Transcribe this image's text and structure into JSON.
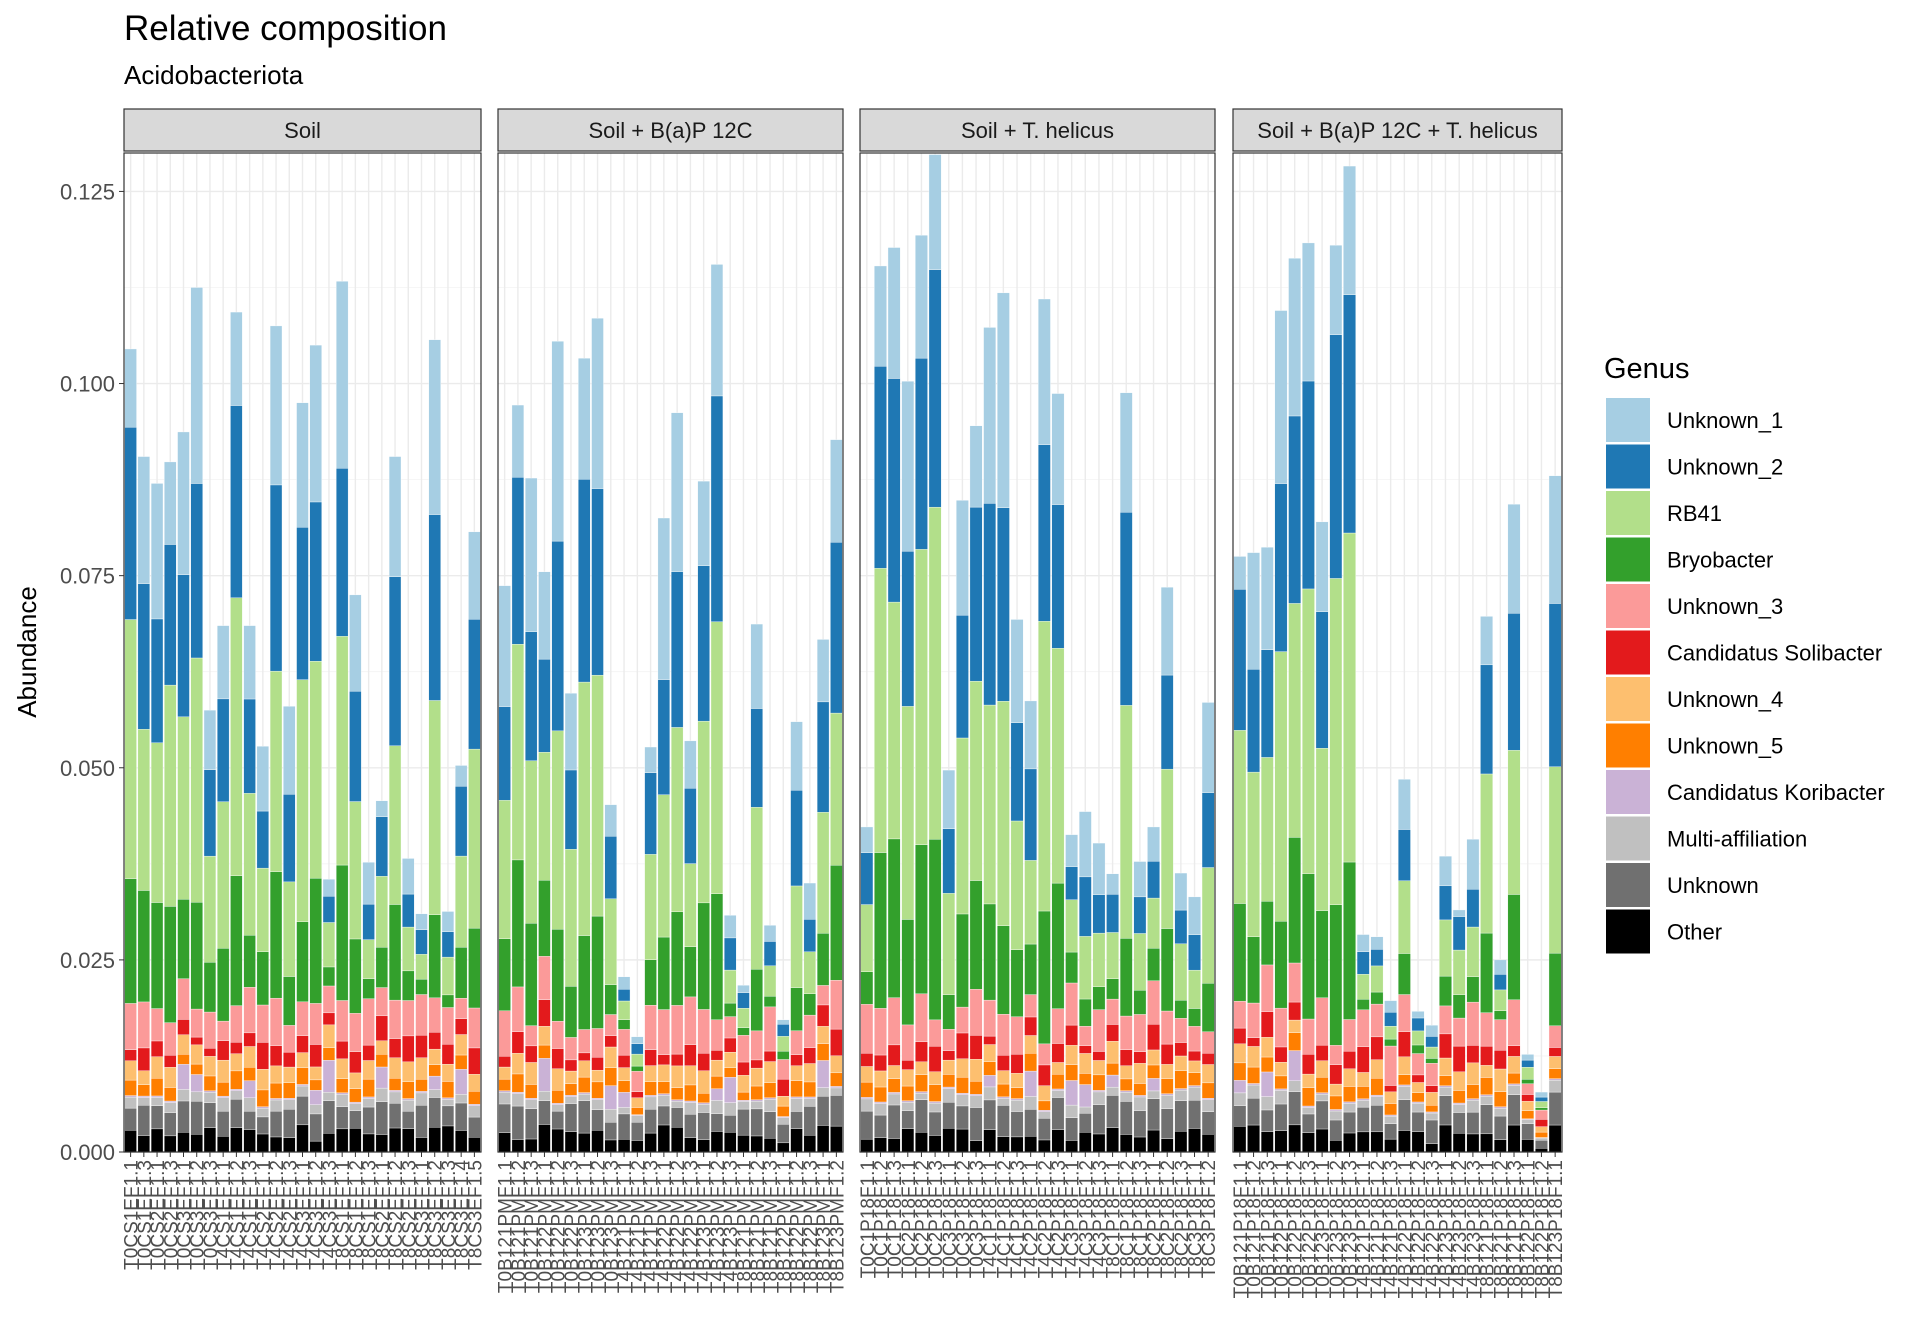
{
  "chart_data": {
    "type": "bar",
    "stacked": true,
    "title": "Relative composition",
    "subtitle": "Acidobacteriota",
    "ylabel": "Abundance",
    "xlabel": "",
    "ylim": [
      0,
      0.13
    ],
    "yticks": [
      "0.000",
      "0.025",
      "0.050",
      "0.075",
      "0.100",
      "0.125"
    ],
    "ytick_values": [
      0,
      0.025,
      0.05,
      0.075,
      0.1,
      0.125
    ],
    "grid": true,
    "legend": {
      "title": "Genus",
      "position": "right",
      "items": [
        "Unknown_1",
        "Unknown_2",
        "RB41",
        "Bryobacter",
        "Unknown_3",
        "Candidatus Solibacter",
        "Unknown_4",
        "Unknown_5",
        "Candidatus Koribacter",
        "Multi-affiliation",
        "Unknown",
        "Other"
      ]
    },
    "colors": {
      "Unknown_1": "#A6CEE3",
      "Unknown_2": "#1F78B4",
      "RB41": "#B2DF8A",
      "Bryobacter": "#33A02C",
      "Unknown_3": "#FB9A99",
      "Candidatus Solibacter": "#E31A1C",
      "Unknown_4": "#FDBF6F",
      "Unknown_5": "#FF7F00",
      "Candidatus Koribacter": "#CAB2D6",
      "Multi-affiliation": "#C0C0C0",
      "Unknown": "#707070",
      "Other": "#000000"
    },
    "panels": [
      {
        "name": "Soil",
        "bars": [
          {
            "label": "T0CS1EF1.1",
            "total": 0.1045
          },
          {
            "label": "T0CS1EF1.3",
            "total": 0.0905
          },
          {
            "label": "T0CS2EF1.1",
            "total": 0.087
          },
          {
            "label": "T0CS2EF1.3",
            "total": 0.0898
          },
          {
            "label": "T0CS3EF1.1",
            "total": 0.0937
          },
          {
            "label": "T0CS3EF1.2",
            "total": 0.1125
          },
          {
            "label": "T0CS3EF1.3",
            "total": 0.0575
          },
          {
            "label": "T4CS1EF1.1",
            "total": 0.0685
          },
          {
            "label": "T4CS1EF1.2",
            "total": 0.1093
          },
          {
            "label": "T4CS1EF1.3",
            "total": 0.0685
          },
          {
            "label": "T4CS2EF1.1",
            "total": 0.0528
          },
          {
            "label": "T4CS2EF1.2",
            "total": 0.1075
          },
          {
            "label": "T4CS2EF1.3",
            "total": 0.058
          },
          {
            "label": "T4CS3EF1.1",
            "total": 0.0975
          },
          {
            "label": "T4CS3EF1.2",
            "total": 0.105
          },
          {
            "label": "T4CS3EF1.3",
            "total": 0.0355
          },
          {
            "label": "T8CS1EF1.1",
            "total": 0.1133
          },
          {
            "label": "T8CS1EF1.2",
            "total": 0.0725
          },
          {
            "label": "T8CS1EF1.3",
            "total": 0.0377
          },
          {
            "label": "T8CS2EF1.1",
            "total": 0.0457
          },
          {
            "label": "T8CS2EF1.2",
            "total": 0.0905
          },
          {
            "label": "T8CS2EF1.3",
            "total": 0.0382
          },
          {
            "label": "T8CS3EF1.1",
            "total": 0.031
          },
          {
            "label": "T8CS3EF1.2",
            "total": 0.1057
          },
          {
            "label": "T8CS3EF1.3",
            "total": 0.0313
          },
          {
            "label": "T8CS3EF1.4",
            "total": 0.0503
          },
          {
            "label": "T8CS3EF1.5",
            "total": 0.0807
          }
        ]
      },
      {
        "name": "Soil + B(a)P 12C",
        "bars": [
          {
            "label": "T0B121PMF1.1",
            "total": 0.0737
          },
          {
            "label": "T0B121PMF1.2",
            "total": 0.0972
          },
          {
            "label": "T0B121PMF1.3",
            "total": 0.0877
          },
          {
            "label": "T0B122PMF1.1",
            "total": 0.0755
          },
          {
            "label": "T0B122PMF1.2",
            "total": 0.1055
          },
          {
            "label": "T0B122PMF1.3",
            "total": 0.0597
          },
          {
            "label": "T0B123PMF1.1",
            "total": 0.1033
          },
          {
            "label": "T0B123PMF1.2",
            "total": 0.1085
          },
          {
            "label": "T0B123PMF1.3",
            "total": 0.0452
          },
          {
            "label": "T4B121PMF1.1",
            "total": 0.0228
          },
          {
            "label": "T4B121PMF1.2",
            "total": 0.015
          },
          {
            "label": "T4B121PMF1.3",
            "total": 0.0527
          },
          {
            "label": "T4B122PMF1.1",
            "total": 0.0825
          },
          {
            "label": "T4B122PMF1.2",
            "total": 0.0962
          },
          {
            "label": "T4B122PMF1.3",
            "total": 0.0535
          },
          {
            "label": "T4B123PMF1.1",
            "total": 0.0873
          },
          {
            "label": "T4B123PMF1.2",
            "total": 0.1155
          },
          {
            "label": "T4B123PMF1.3",
            "total": 0.0308
          },
          {
            "label": "T8B121PMF1.1",
            "total": 0.0217
          },
          {
            "label": "T8B121PMF1.2",
            "total": 0.0687
          },
          {
            "label": "T8B121PMF1.3",
            "total": 0.0295
          },
          {
            "label": "T8B122PMF1.1",
            "total": 0.0172
          },
          {
            "label": "T8B122PMF1.2",
            "total": 0.056
          },
          {
            "label": "T8B122PMF1.3",
            "total": 0.035
          },
          {
            "label": "T8B123PMF1.1",
            "total": 0.0667
          },
          {
            "label": "T8B123PMF1.2",
            "total": 0.0927
          }
        ]
      },
      {
        "name": "Soil + T. helicus",
        "bars": [
          {
            "label": "T0C1P18F1.1",
            "total": 0.0423
          },
          {
            "label": "T0C1P18F1.2",
            "total": 0.1153
          },
          {
            "label": "T0C1P18F1.3",
            "total": 0.1177
          },
          {
            "label": "T0C2P18F1.1",
            "total": 0.1003
          },
          {
            "label": "T0C2P18F1.2",
            "total": 0.1193
          },
          {
            "label": "T0C2P18F1.3",
            "total": 0.1298
          },
          {
            "label": "T0C3P18F1.1",
            "total": 0.0497
          },
          {
            "label": "T0C3P18F1.2",
            "total": 0.0848
          },
          {
            "label": "T0C3P18F1.3",
            "total": 0.0945
          },
          {
            "label": "T4C1P18F1.1",
            "total": 0.1073
          },
          {
            "label": "T4C1P18F1.2",
            "total": 0.1118
          },
          {
            "label": "T4C1P18F1.3",
            "total": 0.0693
          },
          {
            "label": "T4C2P18F1.1",
            "total": 0.0587
          },
          {
            "label": "T4C2P18F1.2",
            "total": 0.111
          },
          {
            "label": "T4C2P18F1.3",
            "total": 0.0987
          },
          {
            "label": "T4C3P18F1.1",
            "total": 0.0413
          },
          {
            "label": "T4C3P18F1.2",
            "total": 0.0443
          },
          {
            "label": "T4C3P18F1.3",
            "total": 0.0402
          },
          {
            "label": "T8C1P18F1.1",
            "total": 0.0362
          },
          {
            "label": "T8C1P18F1.2",
            "total": 0.0988
          },
          {
            "label": "T8C1P18F1.3",
            "total": 0.0378
          },
          {
            "label": "T8C2P18F1.1",
            "total": 0.0423
          },
          {
            "label": "T8C2P18F1.2",
            "total": 0.0735
          },
          {
            "label": "T8C2P18F1.3",
            "total": 0.0363
          },
          {
            "label": "T8C3P18F1.1",
            "total": 0.0332
          },
          {
            "label": "T8C3P18F1.2",
            "total": 0.0585
          }
        ]
      },
      {
        "name": "Soil + B(a)P 12C + T. helicus",
        "bars": [
          {
            "label": "T0B121P18F1.1",
            "total": 0.0775
          },
          {
            "label": "T0B121P18F1.2",
            "total": 0.078
          },
          {
            "label": "T0B121P18F1.3",
            "total": 0.0787
          },
          {
            "label": "T0B122P18F1.1",
            "total": 0.1095
          },
          {
            "label": "T0B122P18F1.2",
            "total": 0.1163
          },
          {
            "label": "T0B122P18F1.3",
            "total": 0.1183
          },
          {
            "label": "T0B123P18F1.1",
            "total": 0.082
          },
          {
            "label": "T0B123P18F1.2",
            "total": 0.118
          },
          {
            "label": "T0B123P18F1.3",
            "total": 0.1283
          },
          {
            "label": "T4B121P18F1.1",
            "total": 0.0283
          },
          {
            "label": "T4B121P18F1.2",
            "total": 0.028
          },
          {
            "label": "T4B121P18F1.3",
            "total": 0.0197
          },
          {
            "label": "T4B122P18F1.1",
            "total": 0.0485
          },
          {
            "label": "T4B122P18F1.2",
            "total": 0.0183
          },
          {
            "label": "T4B122P18F1.3",
            "total": 0.0165
          },
          {
            "label": "T4B123P18F1.1",
            "total": 0.0385
          },
          {
            "label": "T4B123P18F1.2",
            "total": 0.0315
          },
          {
            "label": "T4B123P18F1.3",
            "total": 0.0407
          },
          {
            "label": "T8B121P18F1.1",
            "total": 0.0697
          },
          {
            "label": "T8B121P18F1.2",
            "total": 0.025
          },
          {
            "label": "T8B121P18F1.3",
            "total": 0.0843
          },
          {
            "label": "T8B122P18F1.1",
            "total": 0.0127
          },
          {
            "label": "T8B122P18F1.2",
            "total": 0.0078
          },
          {
            "label": "T8B123P18F1.1",
            "total": 0.088
          }
        ]
      }
    ]
  }
}
